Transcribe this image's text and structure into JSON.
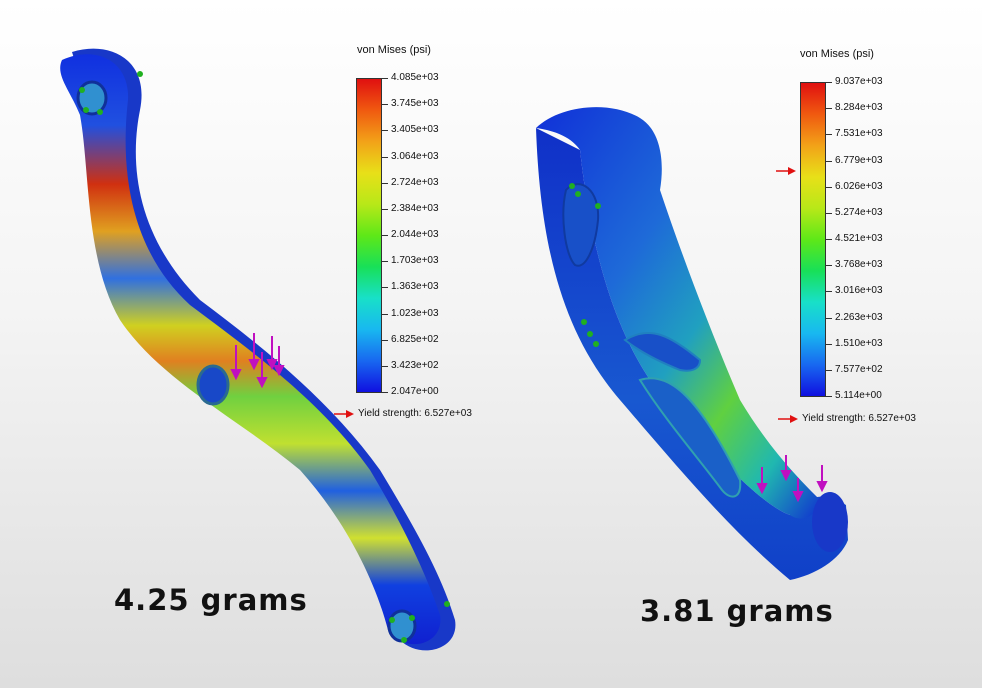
{
  "colors": {
    "max": "#e01010",
    "min": "#1010e0",
    "yield_arrow": "#e01010",
    "load_arrow": "#c010c0",
    "fixture": "#20b020"
  },
  "left_part": {
    "legend": {
      "title": "von Mises (psi)",
      "ticks": [
        "4.085e+03",
        "3.745e+03",
        "3.405e+03",
        "3.064e+03",
        "2.724e+03",
        "2.384e+03",
        "2.044e+03",
        "1.703e+03",
        "1.363e+03",
        "1.023e+03",
        "6.825e+02",
        "3.423e+02",
        "2.047e+00"
      ],
      "yield_label": "Yield strength: 6.527e+03"
    },
    "mass_label": "4.25 grams"
  },
  "right_part": {
    "legend": {
      "title": "von Mises (psi)",
      "ticks": [
        "9.037e+03",
        "8.284e+03",
        "7.531e+03",
        "6.779e+03",
        "6.026e+03",
        "5.274e+03",
        "4.521e+03",
        "3.768e+03",
        "3.016e+03",
        "2.263e+03",
        "1.510e+03",
        "7.577e+02",
        "5.114e+00"
      ],
      "yield_label": "Yield strength: 6.527e+03"
    },
    "mass_label": "3.81 grams"
  }
}
